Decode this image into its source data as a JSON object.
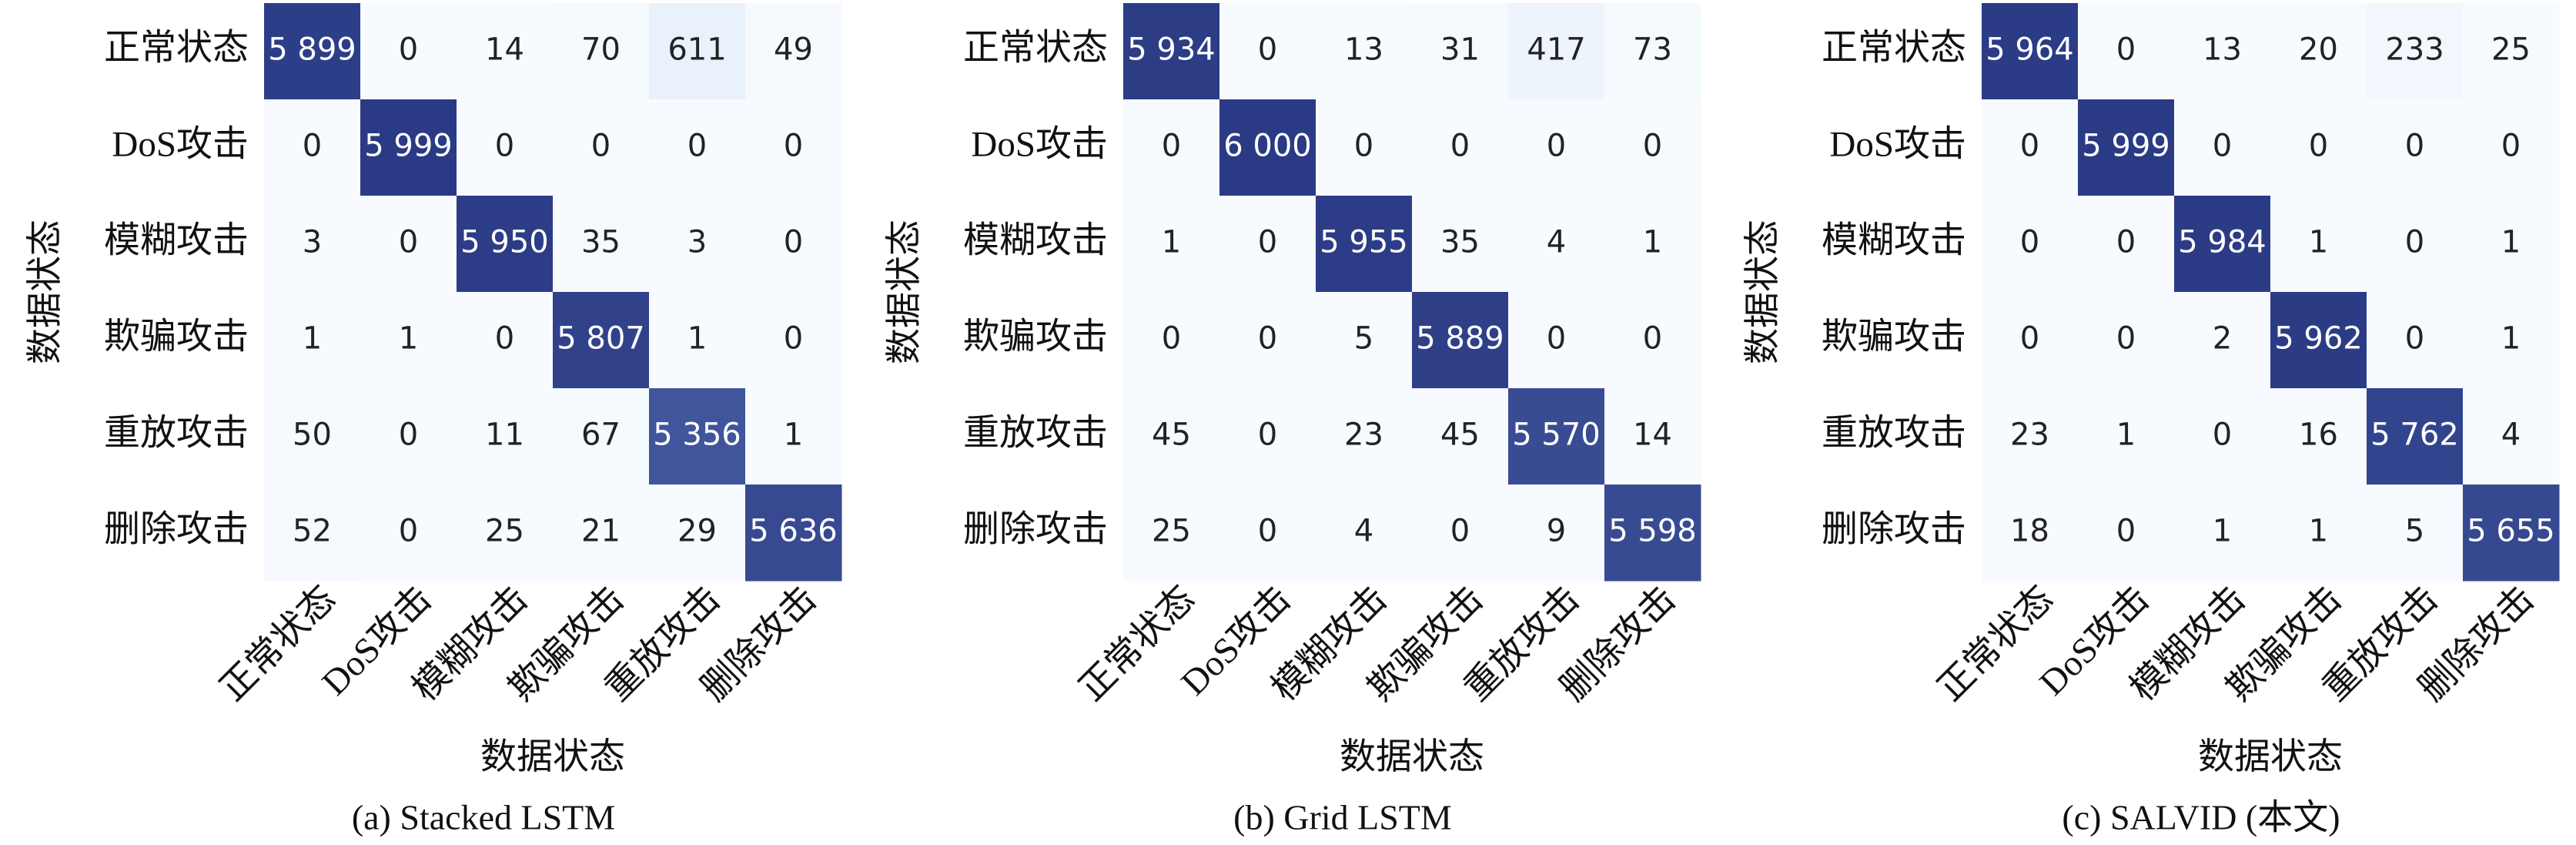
{
  "chart_data": [
    {
      "type": "heatmap",
      "caption": "(a)  Stacked LSTM",
      "xlabel": "数据状态",
      "ylabel": "数据状态",
      "categories": [
        "正常状态",
        "DoS攻击",
        "模糊攻击",
        "欺骗攻击",
        "重放攻击",
        "删除攻击"
      ],
      "colors": [
        "#f7fbff",
        "#c9daf0",
        "#6f8fcc",
        "#2a3a84"
      ],
      "values": [
        [
          5899,
          0,
          14,
          70,
          611,
          49
        ],
        [
          0,
          5999,
          0,
          0,
          0,
          0
        ],
        [
          3,
          0,
          5950,
          35,
          3,
          0
        ],
        [
          1,
          1,
          0,
          5807,
          1,
          0
        ],
        [
          50,
          0,
          11,
          67,
          5356,
          1
        ],
        [
          52,
          0,
          25,
          21,
          29,
          5636
        ]
      ],
      "value_labels": [
        [
          "5 899",
          "0",
          "14",
          "70",
          "611",
          "49"
        ],
        [
          "0",
          "5 999",
          "0",
          "0",
          "0",
          "0"
        ],
        [
          "3",
          "0",
          "5 950",
          "35",
          "3",
          "0"
        ],
        [
          "1",
          "1",
          "0",
          "5 807",
          "1",
          "0"
        ],
        [
          "50",
          "0",
          "11",
          "67",
          "5 356",
          "1"
        ],
        [
          "52",
          "0",
          "25",
          "21",
          "29",
          "5 636"
        ]
      ]
    },
    {
      "type": "heatmap",
      "caption": "(b)  Grid LSTM",
      "xlabel": "数据状态",
      "ylabel": "数据状态",
      "categories": [
        "正常状态",
        "DoS攻击",
        "模糊攻击",
        "欺骗攻击",
        "重放攻击",
        "删除攻击"
      ],
      "colors": [
        "#f7fbff",
        "#c9daf0",
        "#6f8fcc",
        "#2a3a84"
      ],
      "values": [
        [
          5934,
          0,
          13,
          31,
          417,
          73
        ],
        [
          0,
          6000,
          0,
          0,
          0,
          0
        ],
        [
          1,
          0,
          5955,
          35,
          4,
          1
        ],
        [
          0,
          0,
          5,
          5889,
          0,
          0
        ],
        [
          45,
          0,
          23,
          45,
          5570,
          14
        ],
        [
          25,
          0,
          4,
          0,
          9,
          5598
        ]
      ],
      "value_labels": [
        [
          "5 934",
          "0",
          "13",
          "31",
          "417",
          "73"
        ],
        [
          "0",
          "6 000",
          "0",
          "0",
          "0",
          "0"
        ],
        [
          "1",
          "0",
          "5 955",
          "35",
          "4",
          "1"
        ],
        [
          "0",
          "0",
          "5",
          "5 889",
          "0",
          "0"
        ],
        [
          "45",
          "0",
          "23",
          "45",
          "5 570",
          "14"
        ],
        [
          "25",
          "0",
          "4",
          "0",
          "9",
          "5 598"
        ]
      ]
    },
    {
      "type": "heatmap",
      "caption": "(c)  SALVID (本文)",
      "xlabel": "数据状态",
      "ylabel": "数据状态",
      "categories": [
        "正常状态",
        "DoS攻击",
        "模糊攻击",
        "欺骗攻击",
        "重放攻击",
        "删除攻击"
      ],
      "colors": [
        "#f7fbff",
        "#c9daf0",
        "#6f8fcc",
        "#2a3a84"
      ],
      "values": [
        [
          5964,
          0,
          13,
          20,
          233,
          25
        ],
        [
          0,
          5999,
          0,
          0,
          0,
          0
        ],
        [
          0,
          0,
          5984,
          1,
          0,
          1
        ],
        [
          0,
          0,
          2,
          5962,
          0,
          1
        ],
        [
          23,
          1,
          0,
          16,
          5762,
          4
        ],
        [
          18,
          0,
          1,
          1,
          5,
          5655
        ]
      ],
      "value_labels": [
        [
          "5 964",
          "0",
          "13",
          "20",
          "233",
          "25"
        ],
        [
          "0",
          "5 999",
          "0",
          "0",
          "0",
          "0"
        ],
        [
          "0",
          "0",
          "5 984",
          "1",
          "0",
          "1"
        ],
        [
          "0",
          "0",
          "2",
          "5 962",
          "0",
          "1"
        ],
        [
          "23",
          "1",
          "0",
          "16",
          "5 762",
          "4"
        ],
        [
          "18",
          "0",
          "1",
          "1",
          "5",
          "5 655"
        ]
      ]
    }
  ]
}
